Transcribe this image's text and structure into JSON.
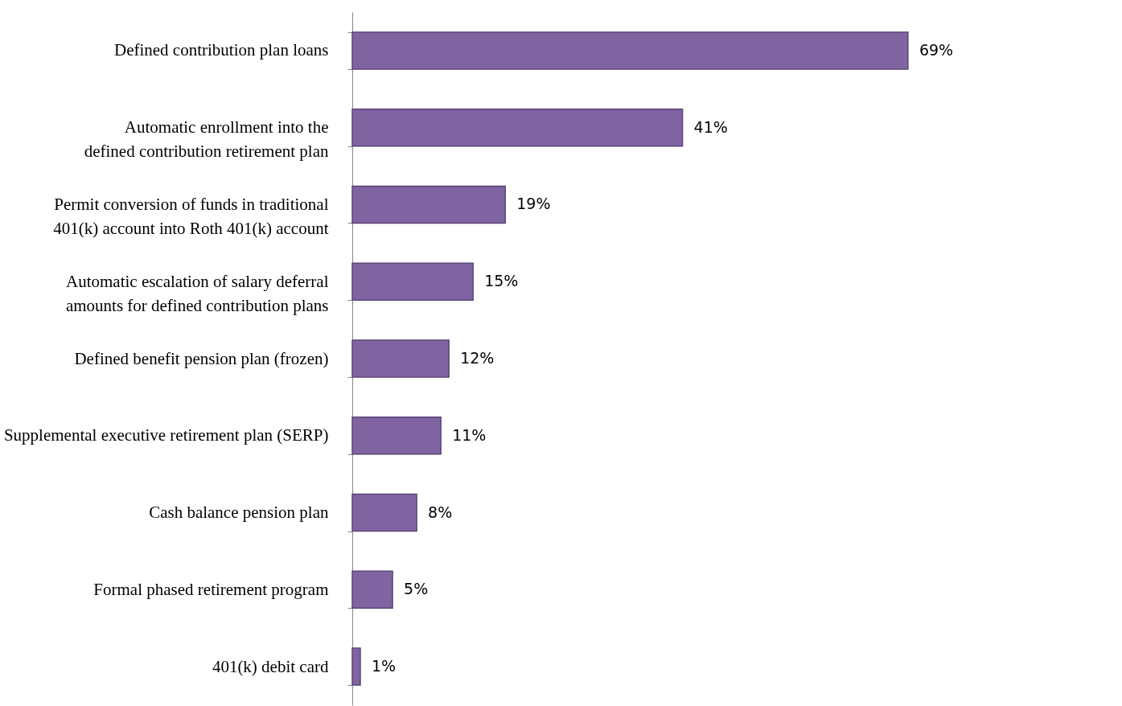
{
  "chart_data": {
    "type": "bar",
    "orientation": "horizontal",
    "value_labels": [
      "69%",
      "41%",
      "19%",
      "15%",
      "12%",
      "11%",
      "8%",
      "5%",
      "1%"
    ],
    "categories": [
      "Defined contribution plan loans",
      "Automatic enrollment into the defined contribution retirement plan",
      "Permit conversion of funds in traditional 401(k) account into Roth 401(k) account",
      "Automatic escalation of salary deferral amounts for defined contribution plans",
      "Defined benefit pension plan (frozen)",
      "Supplemental executive retirement plan (SERP)",
      "Cash balance pension plan",
      "Formal phased retirement program",
      "401(k) debit card"
    ],
    "values": [
      69,
      41,
      19,
      15,
      12,
      11,
      8,
      5,
      1
    ],
    "color": "#8064a2"
  }
}
